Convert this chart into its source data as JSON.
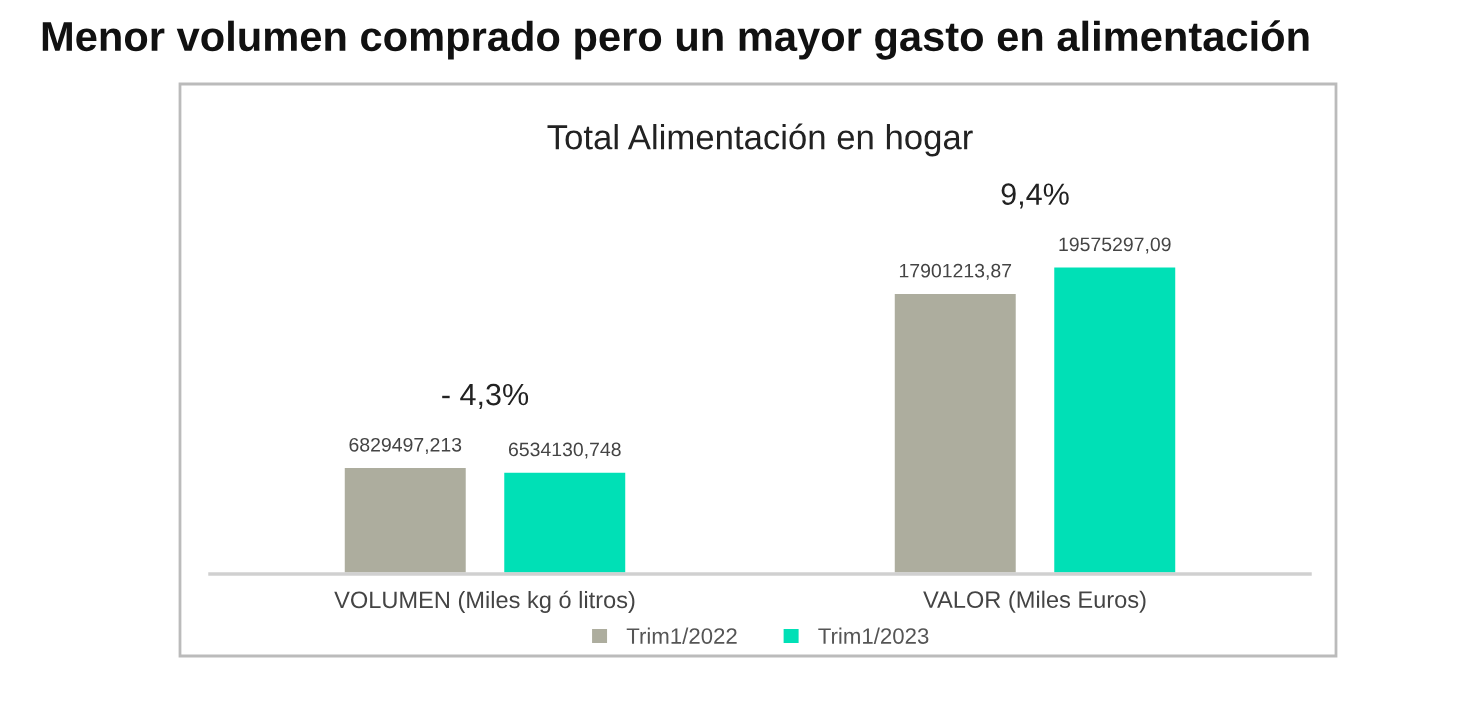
{
  "chart_data": {
    "type": "bar",
    "title": "Menor volumen comprado pero un mayor gasto en alimentación",
    "subtitle": "Total Alimentación en hogar",
    "categories": [
      "VOLUMEN (Miles kg ó litros)",
      "VALOR (Miles Euros)"
    ],
    "series": [
      {
        "name": "Trim1/2022",
        "color": "#adad9e",
        "values": [
          6829497.213,
          17901213.87
        ],
        "value_labels": [
          "6829497,213",
          "17901213,87"
        ]
      },
      {
        "name": "Trim1/2023",
        "color": "#00e0b6",
        "values": [
          6534130.748,
          19575297.09
        ],
        "value_labels": [
          "6534130,748",
          "19575297,09"
        ]
      }
    ],
    "legend": "bottom",
    "annotations": [
      "- 4,3%",
      "9,4%"
    ],
    "grid": false,
    "tick_labels": "x"
  }
}
